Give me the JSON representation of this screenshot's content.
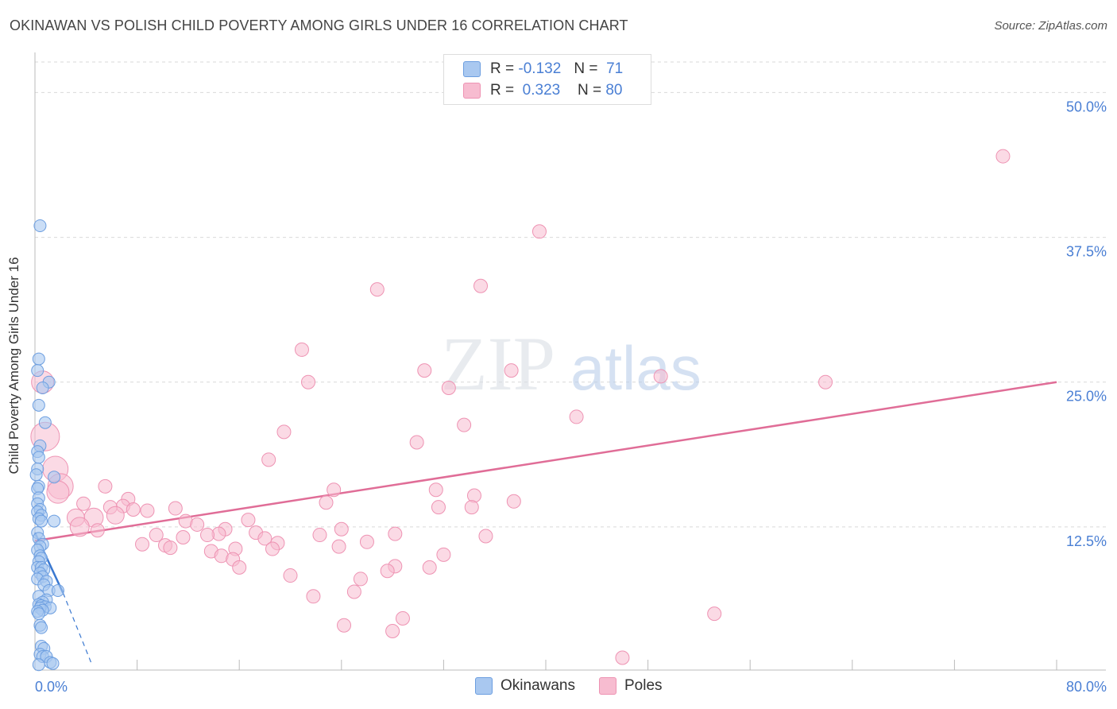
{
  "title": "OKINAWAN VS POLISH CHILD POVERTY AMONG GIRLS UNDER 16 CORRELATION CHART",
  "source": "Source: ZipAtlas.com",
  "watermark": {
    "zip": "ZIP",
    "atlas": "atlas"
  },
  "legend": {
    "r_label": "R =",
    "n_label": "N =",
    "okinawans": {
      "r": "-0.132",
      "n": "71"
    },
    "poles": {
      "r": "0.323",
      "n": "80"
    }
  },
  "colors": {
    "okinawans_fill": "#a9c8f0",
    "okinawans_stroke": "#6c9ee0",
    "okinawans_line": "#3a78d0",
    "poles_fill": "#f7bcd0",
    "poles_stroke": "#ee93b3",
    "poles_line": "#e06d97",
    "tick_label": "#4a7fd4"
  },
  "chart_data": {
    "type": "scatter",
    "title": "OKINAWAN VS POLISH CHILD POVERTY AMONG GIRLS UNDER 16 CORRELATION CHART",
    "xlabel": "",
    "ylabel": "Child Poverty Among Girls Under 16",
    "xlim": [
      0,
      80
    ],
    "ylim": [
      0,
      52.5
    ],
    "x_tick_labels": [
      "0.0%",
      "80.0%"
    ],
    "y_ticks": [
      12.5,
      25.0,
      37.5,
      50.0
    ],
    "y_tick_labels": [
      "12.5%",
      "25.0%",
      "37.5%",
      "50.0%"
    ],
    "grid": true,
    "series": [
      {
        "name": "Okinawans",
        "r": -0.132,
        "n": 71,
        "trend": {
          "x": [
            0,
            2.2
          ],
          "y": [
            12.0,
            6.8
          ]
        },
        "trend_dashed": {
          "x": [
            2.2,
            4.5
          ],
          "y": [
            6.8,
            0.5
          ]
        },
        "points": [
          [
            0.4,
            38.5
          ],
          [
            0.3,
            27.0
          ],
          [
            0.2,
            26.0
          ],
          [
            1.1,
            25.0
          ],
          [
            0.6,
            24.5
          ],
          [
            0.3,
            23.0
          ],
          [
            0.8,
            21.5
          ],
          [
            0.4,
            19.5
          ],
          [
            0.2,
            19.0
          ],
          [
            0.3,
            18.5
          ],
          [
            0.2,
            17.5
          ],
          [
            0.1,
            17.0
          ],
          [
            1.5,
            16.8
          ],
          [
            0.3,
            16.0
          ],
          [
            0.2,
            15.8
          ],
          [
            0.3,
            15.0
          ],
          [
            0.2,
            14.5
          ],
          [
            0.4,
            14.0
          ],
          [
            0.2,
            13.8
          ],
          [
            0.5,
            13.5
          ],
          [
            0.3,
            13.2
          ],
          [
            0.5,
            13.0
          ],
          [
            1.5,
            13.0
          ],
          [
            0.2,
            12.0
          ],
          [
            0.3,
            11.5
          ],
          [
            0.6,
            11.0
          ],
          [
            0.4,
            10.8
          ],
          [
            0.2,
            10.5
          ],
          [
            0.4,
            10.0
          ],
          [
            0.5,
            9.8
          ],
          [
            0.3,
            9.5
          ],
          [
            0.2,
            9.0
          ],
          [
            0.5,
            9.0
          ],
          [
            0.7,
            8.8
          ],
          [
            0.4,
            8.5
          ],
          [
            0.6,
            8.2
          ],
          [
            0.2,
            8.0
          ],
          [
            0.9,
            7.8
          ],
          [
            0.7,
            7.5
          ],
          [
            1.1,
            7.0
          ],
          [
            1.8,
            7.0
          ],
          [
            0.3,
            6.5
          ],
          [
            0.9,
            6.2
          ],
          [
            0.6,
            6.0
          ],
          [
            0.3,
            5.8
          ],
          [
            0.5,
            5.7
          ],
          [
            0.8,
            5.6
          ],
          [
            1.2,
            5.5
          ],
          [
            0.4,
            5.5
          ],
          [
            0.6,
            5.3
          ],
          [
            0.2,
            5.2
          ],
          [
            0.3,
            5.0
          ],
          [
            0.4,
            4.0
          ],
          [
            0.5,
            3.8
          ],
          [
            0.5,
            2.2
          ],
          [
            0.7,
            2.0
          ],
          [
            0.4,
            1.5
          ],
          [
            0.6,
            1.3
          ],
          [
            0.9,
            1.3
          ],
          [
            1.2,
            0.8
          ],
          [
            1.4,
            0.7
          ],
          [
            0.3,
            0.6
          ]
        ]
      },
      {
        "name": "Poles",
        "r": 0.323,
        "n": 80,
        "trend": {
          "x": [
            0,
            80
          ],
          "y": [
            11.3,
            25.0
          ]
        },
        "points": [
          [
            75.8,
            44.5
          ],
          [
            39.5,
            38.0
          ],
          [
            26.8,
            33.0
          ],
          [
            34.9,
            33.3
          ],
          [
            20.9,
            27.8
          ],
          [
            30.5,
            26.0
          ],
          [
            37.3,
            26.0
          ],
          [
            49.0,
            25.5
          ],
          [
            61.9,
            25.0
          ],
          [
            21.4,
            25.0
          ],
          [
            32.4,
            24.5
          ],
          [
            42.4,
            22.0
          ],
          [
            33.6,
            21.3
          ],
          [
            19.5,
            20.7
          ],
          [
            29.9,
            19.8
          ],
          [
            18.3,
            18.3
          ],
          [
            0.6,
            25.0
          ],
          [
            0.8,
            20.3
          ],
          [
            1.6,
            17.5
          ],
          [
            2.0,
            16.0
          ],
          [
            1.8,
            15.5
          ],
          [
            5.5,
            16.0
          ],
          [
            31.4,
            15.7
          ],
          [
            23.4,
            15.7
          ],
          [
            34.4,
            15.2
          ],
          [
            22.8,
            14.6
          ],
          [
            37.5,
            14.7
          ],
          [
            7.3,
            14.9
          ],
          [
            3.8,
            14.5
          ],
          [
            6.9,
            14.3
          ],
          [
            5.9,
            14.2
          ],
          [
            11.0,
            14.1
          ],
          [
            7.7,
            14.0
          ],
          [
            8.8,
            13.9
          ],
          [
            31.6,
            14.2
          ],
          [
            34.2,
            14.2
          ],
          [
            6.3,
            13.5
          ],
          [
            4.6,
            13.3
          ],
          [
            3.2,
            13.3
          ],
          [
            11.8,
            13.0
          ],
          [
            16.7,
            13.1
          ],
          [
            12.7,
            12.7
          ],
          [
            3.5,
            12.5
          ],
          [
            4.9,
            12.2
          ],
          [
            14.9,
            12.3
          ],
          [
            24.0,
            12.3
          ],
          [
            17.3,
            12.0
          ],
          [
            14.4,
            11.9
          ],
          [
            9.5,
            11.8
          ],
          [
            13.5,
            11.8
          ],
          [
            11.6,
            11.6
          ],
          [
            22.3,
            11.8
          ],
          [
            28.2,
            11.9
          ],
          [
            35.3,
            11.7
          ],
          [
            18.0,
            11.5
          ],
          [
            26.0,
            11.2
          ],
          [
            19.0,
            11.1
          ],
          [
            8.4,
            11.0
          ],
          [
            10.2,
            10.9
          ],
          [
            10.6,
            10.7
          ],
          [
            23.8,
            10.8
          ],
          [
            15.7,
            10.6
          ],
          [
            18.6,
            10.6
          ],
          [
            13.8,
            10.4
          ],
          [
            14.6,
            10.0
          ],
          [
            32.0,
            10.1
          ],
          [
            15.5,
            9.7
          ],
          [
            16.0,
            9.0
          ],
          [
            28.2,
            9.1
          ],
          [
            27.6,
            8.7
          ],
          [
            30.9,
            9.0
          ],
          [
            20.0,
            8.3
          ],
          [
            25.5,
            8.0
          ],
          [
            25.0,
            6.9
          ],
          [
            21.8,
            6.5
          ],
          [
            28.8,
            4.6
          ],
          [
            53.2,
            5.0
          ],
          [
            24.2,
            4.0
          ],
          [
            28.0,
            3.5
          ],
          [
            46.0,
            1.2
          ]
        ]
      }
    ]
  },
  "bottom_legend": {
    "okinawans": "Okinawans",
    "poles": "Poles"
  }
}
